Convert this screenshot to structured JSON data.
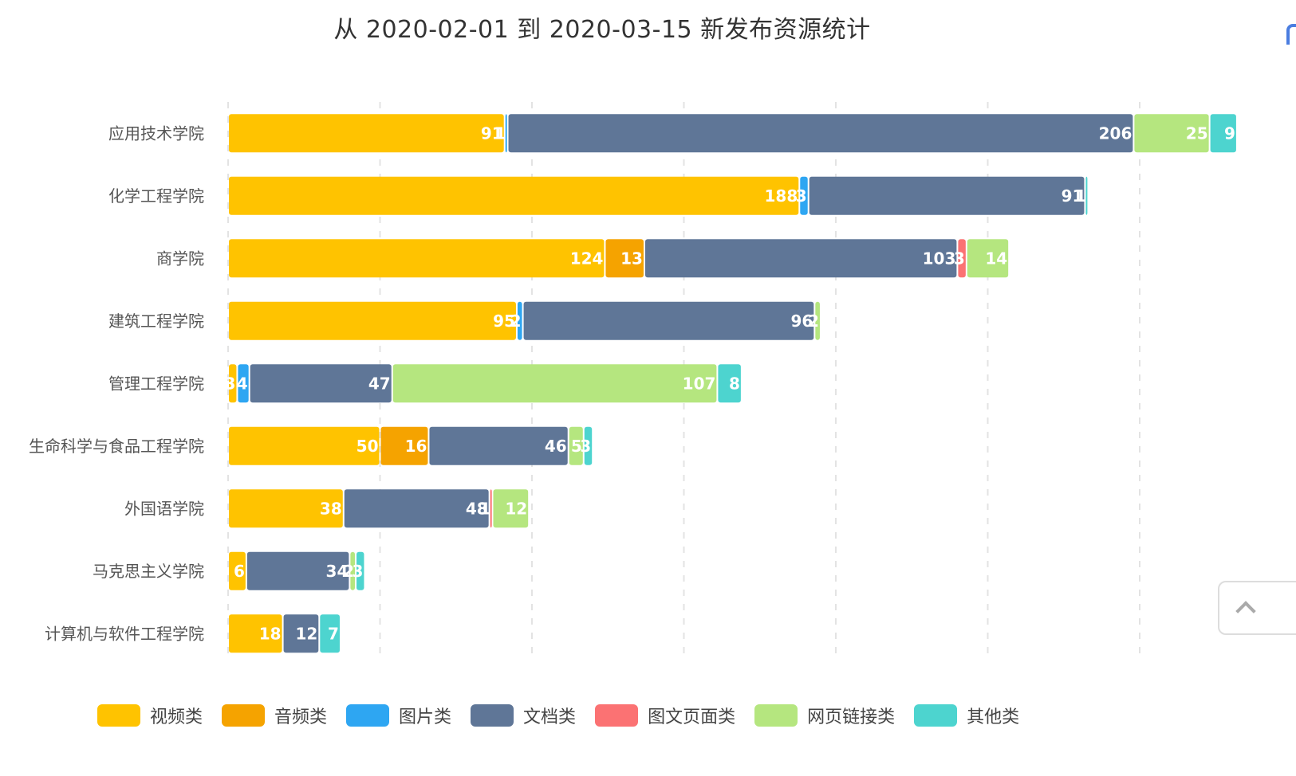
{
  "chart_data": {
    "type": "bar",
    "orientation": "horizontal",
    "stacked": true,
    "title": "从 2020-02-01 到 2020-03-15 新发布资源统计",
    "xlabel": "",
    "ylabel": "",
    "xlim": [
      0,
      350
    ],
    "x_gridlines": [
      0,
      50,
      100,
      150,
      200,
      250,
      300
    ],
    "x_tick_labels_visible": false,
    "grid": true,
    "legend_position": "bottom",
    "categories": [
      "应用技术学院",
      "化学工程学院",
      "商学院",
      "建筑工程学院",
      "管理工程学院",
      "生命科学与食品工程学院",
      "外国语学院",
      "马克思主义学院",
      "计算机与软件工程学院"
    ],
    "series": [
      {
        "name": "视频类",
        "color": "#FFC300",
        "values": [
          91,
          188,
          124,
          95,
          3,
          50,
          38,
          6,
          18
        ]
      },
      {
        "name": "音频类",
        "color": "#F5A300",
        "values": [
          0,
          0,
          13,
          0,
          0,
          16,
          0,
          0,
          0
        ]
      },
      {
        "name": "图片类",
        "color": "#2EA6F2",
        "values": [
          1,
          3,
          0,
          2,
          4,
          0,
          0,
          0,
          0
        ]
      },
      {
        "name": "文档类",
        "color": "#5F7697",
        "values": [
          206,
          91,
          103,
          96,
          47,
          46,
          48,
          34,
          12
        ]
      },
      {
        "name": "图文页面类",
        "color": "#FB7273",
        "values": [
          0,
          0,
          3,
          0,
          0,
          0,
          1,
          0,
          0
        ]
      },
      {
        "name": "网页链接类",
        "color": "#B5E67F",
        "values": [
          25,
          0,
          14,
          2,
          107,
          5,
          12,
          2,
          0
        ]
      },
      {
        "name": "其他类",
        "color": "#4DD4CF",
        "values": [
          9,
          1,
          0,
          0,
          8,
          3,
          0,
          3,
          7
        ]
      }
    ]
  },
  "ui": {
    "toolbox_icon": "save-image-icon",
    "back_to_top_icon": "chevron-up-icon"
  }
}
